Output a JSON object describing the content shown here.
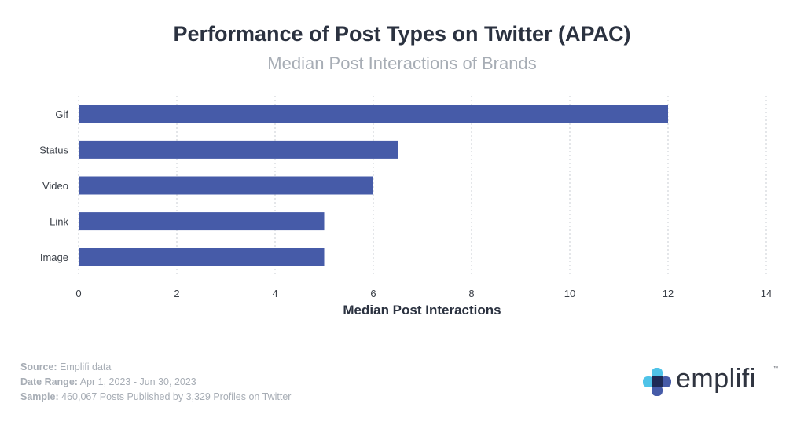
{
  "chart_data": {
    "type": "bar",
    "orientation": "horizontal",
    "title": "Performance of Post Types on Twitter (APAC)",
    "subtitle": "Median Post Interactions of Brands",
    "xlabel": "Median Post Interactions",
    "categories": [
      "Gif",
      "Status",
      "Video",
      "Link",
      "Image"
    ],
    "values": [
      12,
      6.5,
      6,
      5,
      5
    ],
    "xlim": [
      0,
      14
    ],
    "xticks": [
      0,
      2,
      4,
      6,
      8,
      10,
      12,
      14
    ],
    "grid": true,
    "bar_color": "#465ba8"
  },
  "footer": {
    "source_label": "Source:",
    "source_value": "Emplifi data",
    "date_label": "Date Range:",
    "date_value": "Apr 1, 2023 - Jun 30, 2023",
    "sample_label": "Sample:",
    "sample_value": "460,067 Posts Published by 3,329 Profiles on Twitter"
  },
  "logo": {
    "text": "emplifi",
    "tm": "™",
    "colors": [
      "#4fc3e8",
      "#465ba8",
      "#1e2a55"
    ]
  }
}
